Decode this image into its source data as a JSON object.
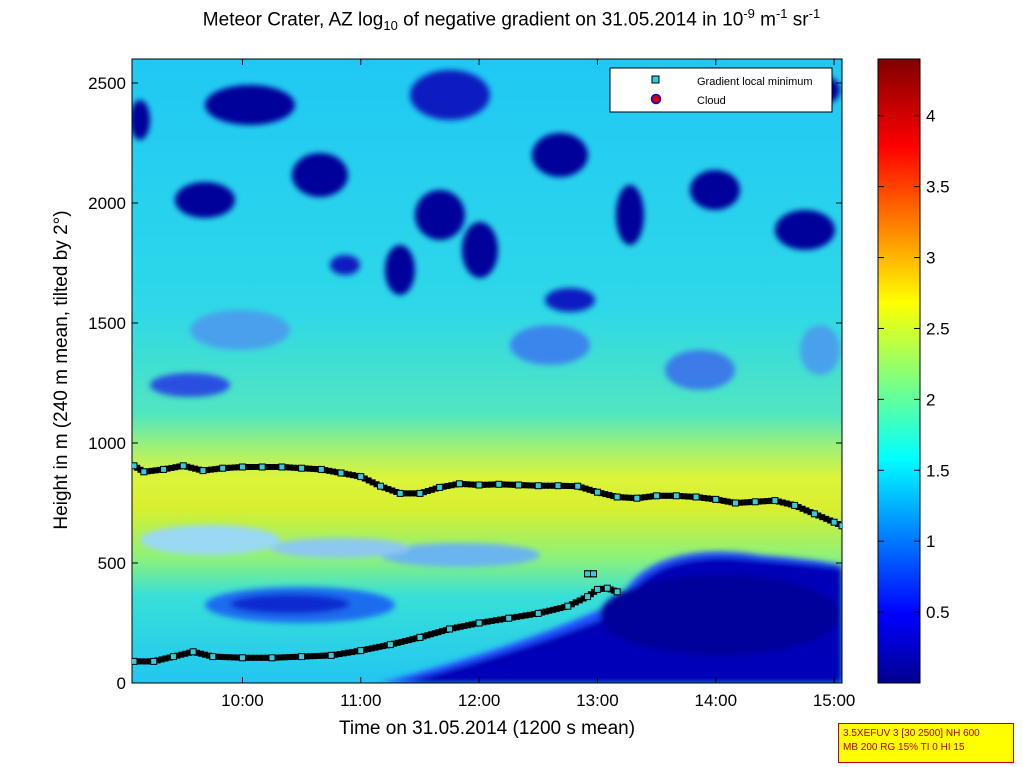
{
  "title": {
    "pre": "Meteor Crater, AZ log",
    "sub": "10",
    "mid": " of negative gradient on 31.05.2014 in 10",
    "sup1": "-9",
    "unit1": " m",
    "sup2": "-1",
    "unit2": " sr",
    "sup3": "-1"
  },
  "legend": {
    "items": [
      {
        "label": "Gradient local minimum",
        "color": "#33ccdd"
      },
      {
        "label": "Cloud",
        "color": "#cc0000"
      }
    ]
  },
  "info_box": {
    "line1": "3.5XEFUV 3 [30 2500] NH 600",
    "line2": "MB 200 RG 15% TI 0 HI 15"
  },
  "chart_data": {
    "type": "heatmap",
    "xlabel": "Time on 31.05.2014 (1200 s mean)",
    "ylabel": "Height in m (240 m mean, tilted by 2°)",
    "xlim": [
      "09:04",
      "15:04"
    ],
    "ylim": [
      0,
      2600
    ],
    "xticks": [
      "10:00",
      "11:00",
      "12:00",
      "13:00",
      "14:00",
      "15:00"
    ],
    "yticks": [
      0,
      500,
      1000,
      1500,
      2000,
      2500
    ],
    "colorbar": {
      "range": [
        0,
        4.4
      ],
      "ticks": [
        0.5,
        1,
        1.5,
        2,
        2.5,
        3,
        3.5,
        4
      ],
      "colormap": "jet"
    },
    "series": [
      {
        "name": "Gradient local minimum",
        "marker": "square",
        "color": "#33ccdd",
        "points": [
          [
            "09:05",
            905
          ],
          [
            "09:10",
            880
          ],
          [
            "09:20",
            890
          ],
          [
            "09:30",
            905
          ],
          [
            "09:40",
            885
          ],
          [
            "09:50",
            895
          ],
          [
            "10:00",
            900
          ],
          [
            "10:10",
            900
          ],
          [
            "10:20",
            900
          ],
          [
            "10:30",
            895
          ],
          [
            "10:40",
            890
          ],
          [
            "10:50",
            875
          ],
          [
            "11:00",
            860
          ],
          [
            "11:10",
            820
          ],
          [
            "11:20",
            790
          ],
          [
            "11:30",
            790
          ],
          [
            "11:40",
            815
          ],
          [
            "11:50",
            830
          ],
          [
            "12:00",
            825
          ],
          [
            "12:10",
            828
          ],
          [
            "12:20",
            825
          ],
          [
            "12:30",
            822
          ],
          [
            "12:40",
            822
          ],
          [
            "12:50",
            820
          ],
          [
            "13:00",
            795
          ],
          [
            "13:10",
            775
          ],
          [
            "13:20",
            770
          ],
          [
            "13:30",
            780
          ],
          [
            "13:40",
            780
          ],
          [
            "13:50",
            775
          ],
          [
            "14:00",
            765
          ],
          [
            "14:10",
            750
          ],
          [
            "14:20",
            755
          ],
          [
            "14:30",
            760
          ],
          [
            "14:40",
            740
          ],
          [
            "14:50",
            705
          ],
          [
            "15:00",
            670
          ],
          [
            "15:04",
            655
          ],
          [
            "09:05",
            90
          ],
          [
            "09:15",
            90
          ],
          [
            "09:25",
            110
          ],
          [
            "09:35",
            130
          ],
          [
            "09:45",
            110
          ],
          [
            "10:00",
            105
          ],
          [
            "10:15",
            105
          ],
          [
            "10:30",
            110
          ],
          [
            "10:45",
            115
          ],
          [
            "11:00",
            135
          ],
          [
            "11:15",
            160
          ],
          [
            "11:30",
            190
          ],
          [
            "11:45",
            225
          ],
          [
            "12:00",
            250
          ],
          [
            "12:15",
            270
          ],
          [
            "12:30",
            290
          ],
          [
            "12:45",
            320
          ],
          [
            "12:55",
            360
          ],
          [
            "13:00",
            390
          ],
          [
            "13:05",
            395
          ],
          [
            "13:10",
            380
          ],
          [
            "12:55",
            455
          ],
          [
            "12:58",
            455
          ]
        ]
      },
      {
        "name": "Cloud",
        "marker": "circle",
        "color": "#cc0000",
        "points": []
      }
    ]
  }
}
